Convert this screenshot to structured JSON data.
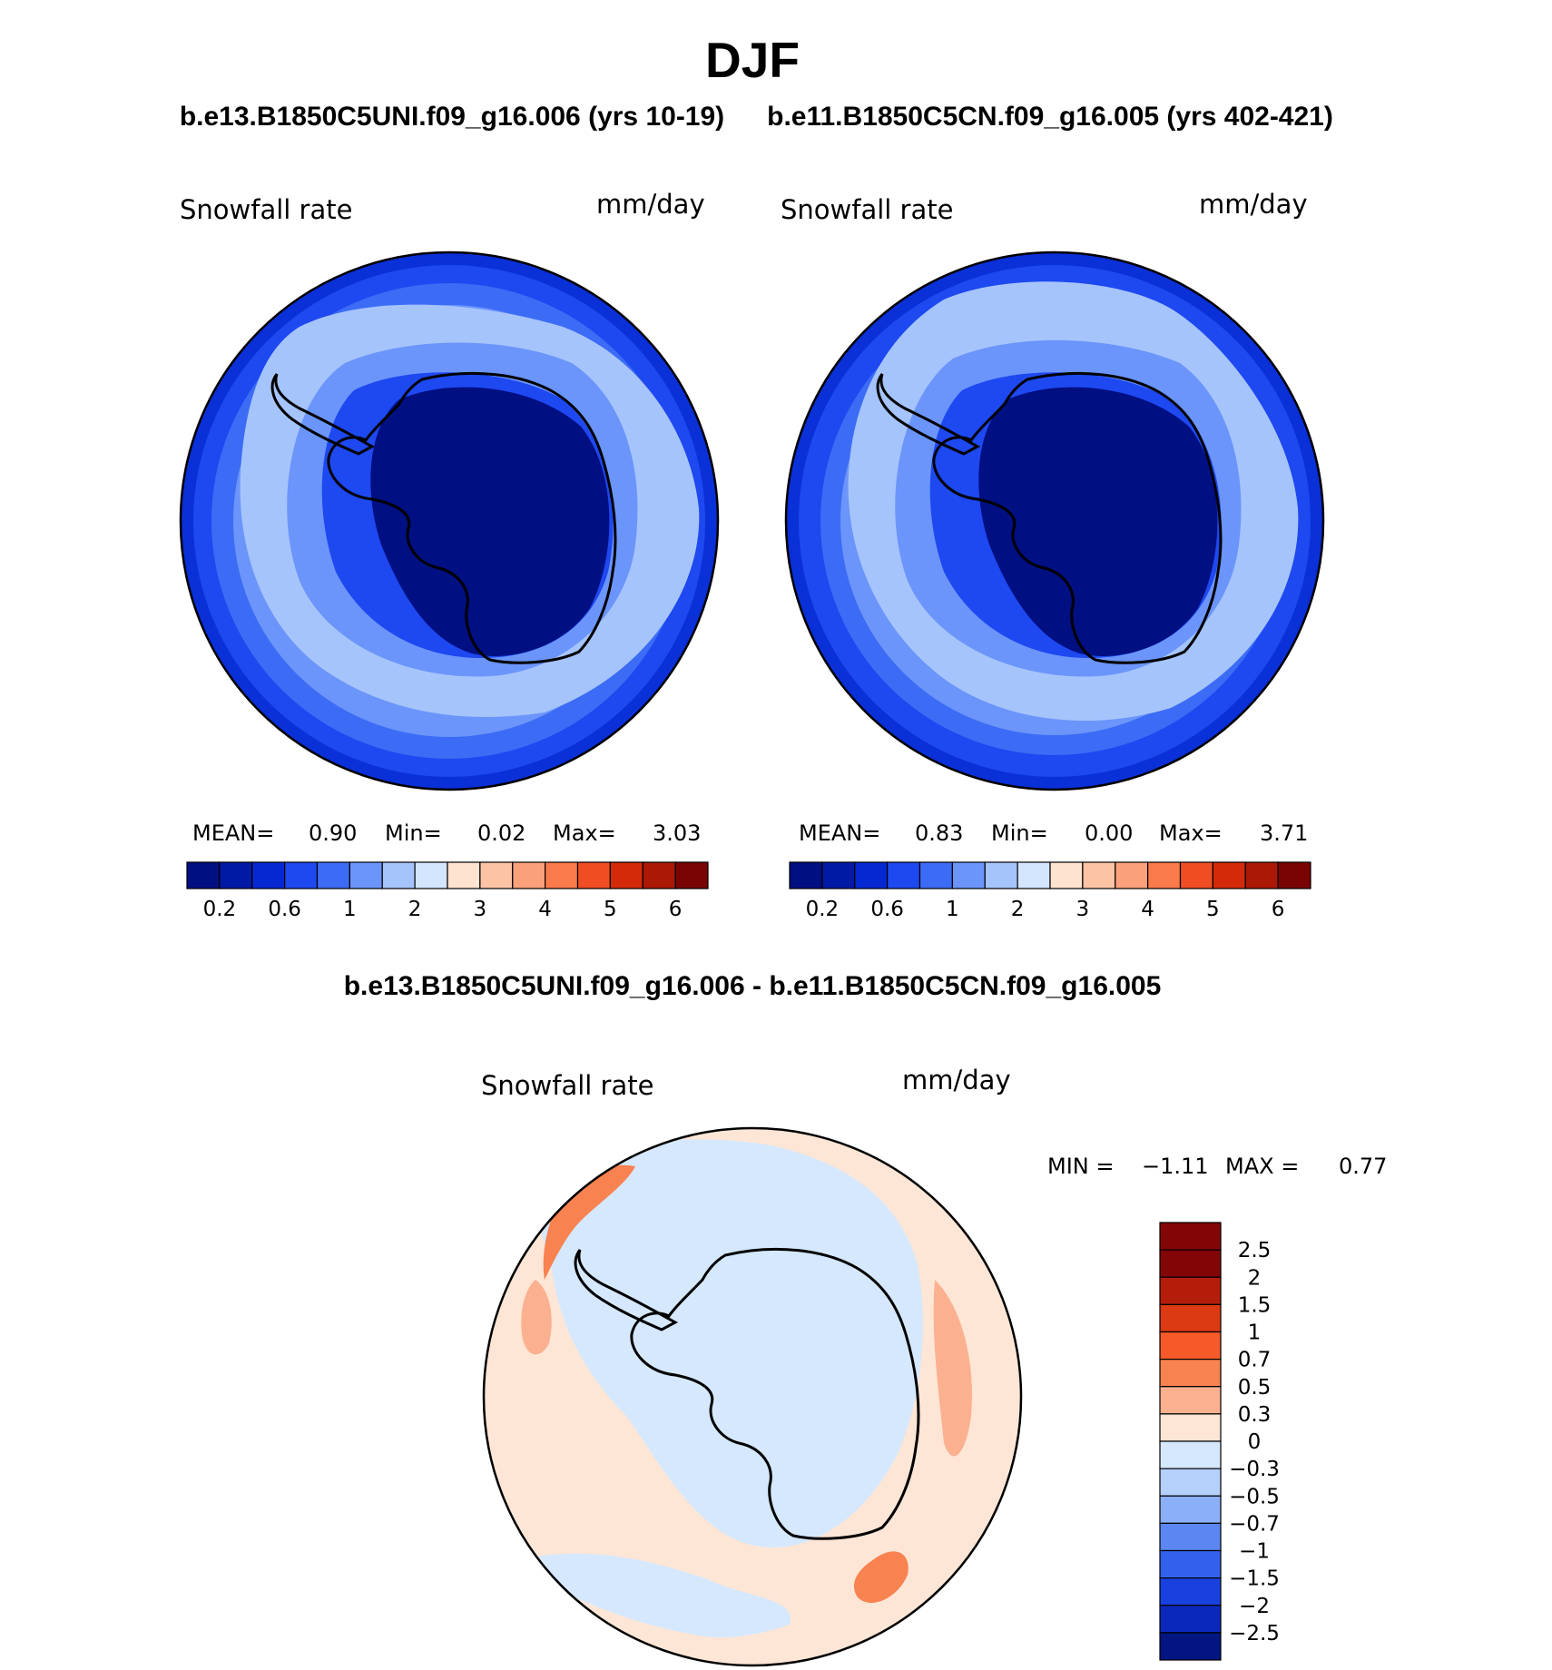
{
  "figure_title": "DJF",
  "chart_data": [
    {
      "type": "heatmap",
      "projection": "south polar stereographic",
      "case_title": "b.e13.B1850C5UNI.f09_g16.006 (yrs 10-19)",
      "variable_label": "Snowfall rate",
      "units": "mm/day",
      "stats": {
        "mean_label": "MEAN=",
        "mean": "0.90",
        "min_label": "Min=",
        "min": "0.02",
        "max_label": "Max=",
        "max": "3.03"
      },
      "colorbar_ticks": [
        "0.2",
        "0.6",
        "1",
        "2",
        "3",
        "4",
        "5",
        "6"
      ],
      "contour_levels": [
        0.2,
        0.4,
        0.6,
        0.8,
        1,
        1.5,
        2,
        2.5,
        3,
        3.5,
        4,
        4.5,
        5,
        5.5,
        6
      ],
      "colors": [
        "#000f82",
        "#001aa6",
        "#0528d2",
        "#1e48f0",
        "#3c6cf5",
        "#6b95fa",
        "#a6c4fc",
        "#d4e6fe",
        "#fde3d0",
        "#fcc3a5",
        "#faa07a",
        "#fa7a4b",
        "#f04d23",
        "#d42a0a",
        "#ac1806",
        "#7a0403"
      ]
    },
    {
      "type": "heatmap",
      "projection": "south polar stereographic",
      "case_title": "b.e11.B1850C5CN.f09_g16.005 (yrs 402-421)",
      "variable_label": "Snowfall rate",
      "units": "mm/day",
      "stats": {
        "mean_label": "MEAN=",
        "mean": "0.83",
        "min_label": "Min=",
        "min": "0.00",
        "max_label": "Max=",
        "max": "3.71"
      },
      "colorbar_ticks": [
        "0.2",
        "0.6",
        "1",
        "2",
        "3",
        "4",
        "5",
        "6"
      ],
      "contour_levels": [
        0.2,
        0.4,
        0.6,
        0.8,
        1,
        1.5,
        2,
        2.5,
        3,
        3.5,
        4,
        4.5,
        5,
        5.5,
        6
      ]
    },
    {
      "type": "heatmap",
      "projection": "south polar stereographic",
      "case_title": "b.e13.B1850C5UNI.f09_g16.006 - b.e11.B1850C5CN.f09_g16.005",
      "variable_label": "Snowfall rate",
      "units": "mm/day",
      "stats": {
        "min_label": "MIN =",
        "min": "−1.11",
        "max_label": "MAX =",
        "max": "0.77"
      },
      "colorbar_ticks": [
        "2.5",
        "2",
        "1.5",
        "1",
        "0.7",
        "0.5",
        "0.3",
        "0",
        "−0.3",
        "−0.5",
        "−0.7",
        "−1",
        "−1.5",
        "−2",
        "−2.5"
      ],
      "colors": [
        "#820606",
        "#b41d0a",
        "#dc3a12",
        "#f55a28",
        "#f88250",
        "#fbb190",
        "#fde6d6",
        "#d6e8fd",
        "#b4d0fb",
        "#8cb0f7",
        "#5c87f2",
        "#3461ec",
        "#1841e0",
        "#0a28bc",
        "#021580"
      ]
    }
  ]
}
